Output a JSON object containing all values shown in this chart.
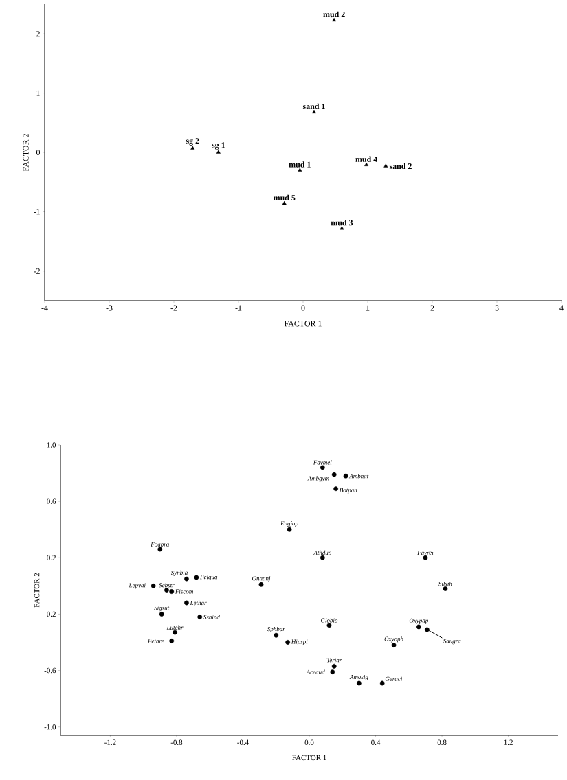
{
  "chart_data": [
    {
      "type": "scatter",
      "xlabel": "FACTOR 1",
      "ylabel": "FACTOR 2",
      "xlim": [
        -4,
        4
      ],
      "ylim": [
        -2.5,
        2.5
      ],
      "xticks": [
        -4,
        -3,
        -2,
        -1,
        0,
        1,
        2,
        3,
        4
      ],
      "yticks": [
        -2,
        -1,
        0,
        1,
        2
      ],
      "marker": "triangle",
      "series": [
        {
          "name": "mud 2",
          "color": "#000000",
          "x": [
            0.48
          ],
          "values": [
            2.23
          ]
        },
        {
          "name": "sand 1",
          "color": "#000000",
          "x": [
            0.17
          ],
          "values": [
            0.68
          ]
        },
        {
          "name": "sg 2",
          "color": "#000000",
          "x": [
            -1.71
          ],
          "values": [
            0.07
          ]
        },
        {
          "name": "sg 1",
          "color": "#000000",
          "x": [
            -1.31
          ],
          "values": [
            0.0
          ]
        },
        {
          "name": "mud 1",
          "color": "#000000",
          "x": [
            -0.05
          ],
          "values": [
            -0.3
          ]
        },
        {
          "name": "mud 4",
          "color": "#000000",
          "x": [
            0.98
          ],
          "values": [
            -0.21
          ]
        },
        {
          "name": "sand 2",
          "color": "#000000",
          "x": [
            1.28
          ],
          "values": [
            -0.23
          ]
        },
        {
          "name": "mud 5",
          "color": "#000000",
          "x": [
            -0.29
          ],
          "values": [
            -0.86
          ]
        },
        {
          "name": "mud 3",
          "color": "#000000",
          "x": [
            0.6
          ],
          "values": [
            -1.28
          ]
        }
      ]
    },
    {
      "type": "scatter",
      "xlabel": "FACTOR 1",
      "ylabel": "FACTOR 2",
      "xlim": [
        -1.5,
        1.5
      ],
      "ylim": [
        -1.06,
        1.0
      ],
      "xticks": [
        -1.2,
        -0.8,
        -0.4,
        {
          "value": 0,
          "label": "0.0"
        },
        0.4,
        0.8,
        1.2
      ],
      "yticks": [
        {
          "value": 1,
          "label": "1.0"
        },
        0.6,
        0.2,
        -0.2,
        -0.6,
        {
          "value": -1,
          "label": "-1.0"
        }
      ],
      "marker": "circle",
      "series": [
        {
          "name": "Favmel",
          "color": "#000000",
          "x": [
            0.08
          ],
          "values": [
            0.84
          ]
        },
        {
          "name": "Ambgym",
          "color": "#000000",
          "x": [
            0.15
          ],
          "values": [
            0.79
          ]
        },
        {
          "name": "Ambnat",
          "color": "#000000",
          "x": [
            0.22
          ],
          "values": [
            0.78
          ]
        },
        {
          "name": "Botpan",
          "color": "#000000",
          "x": [
            0.16
          ],
          "values": [
            0.69
          ]
        },
        {
          "name": "Engjap",
          "color": "#000000",
          "x": [
            -0.12
          ],
          "values": [
            0.4
          ]
        },
        {
          "name": "Foabra",
          "color": "#000000",
          "x": [
            -0.9
          ],
          "values": [
            0.26
          ]
        },
        {
          "name": "Athduo",
          "color": "#000000",
          "x": [
            0.08
          ],
          "values": [
            0.2
          ]
        },
        {
          "name": "Favrei",
          "color": "#000000",
          "x": [
            0.7
          ],
          "values": [
            0.2
          ]
        },
        {
          "name": "Synbia",
          "color": "#000000",
          "x": [
            -0.74
          ],
          "values": [
            0.05
          ]
        },
        {
          "name": "Pelqua",
          "color": "#000000",
          "x": [
            -0.68
          ],
          "values": [
            0.06
          ]
        },
        {
          "name": "Gnaanj",
          "color": "#000000",
          "x": [
            -0.29
          ],
          "values": [
            0.01
          ]
        },
        {
          "name": "Lepvai",
          "color": "#000000",
          "x": [
            -0.94
          ],
          "values": [
            0.0
          ]
        },
        {
          "name": "Sebstr",
          "color": "#000000",
          "x": [
            -0.86
          ],
          "values": [
            -0.03
          ]
        },
        {
          "name": "Silsih",
          "color": "#000000",
          "x": [
            0.82
          ],
          "values": [
            -0.02
          ]
        },
        {
          "name": "Fiscom",
          "color": "#000000",
          "x": [
            -0.83
          ],
          "values": [
            -0.04
          ]
        },
        {
          "name": "Lethar",
          "color": "#000000",
          "x": [
            -0.74
          ],
          "values": [
            -0.12
          ]
        },
        {
          "name": "Sigsut",
          "color": "#000000",
          "x": [
            -0.89
          ],
          "values": [
            -0.2
          ]
        },
        {
          "name": "Ssnind",
          "color": "#000000",
          "x": [
            -0.66
          ],
          "values": [
            -0.22
          ]
        },
        {
          "name": "Sphbar",
          "color": "#000000",
          "x": [
            -0.2
          ],
          "values": [
            -0.35
          ]
        },
        {
          "name": "Globio",
          "color": "#000000",
          "x": [
            0.12
          ],
          "values": [
            -0.28
          ]
        },
        {
          "name": "Oxypap",
          "color": "#000000",
          "x": [
            0.66
          ],
          "values": [
            -0.29
          ]
        },
        {
          "name": "Saugra",
          "color": "#000000",
          "x": [
            0.71
          ],
          "values": [
            -0.31
          ]
        },
        {
          "name": "Lutehr",
          "color": "#000000",
          "x": [
            -0.81
          ],
          "values": [
            -0.33
          ]
        },
        {
          "name": "Hipspi",
          "color": "#000000",
          "x": [
            -0.13
          ],
          "values": [
            -0.4
          ]
        },
        {
          "name": "Oxyoph",
          "color": "#000000",
          "x": [
            0.51
          ],
          "values": [
            -0.42
          ]
        },
        {
          "name": "Pethre",
          "color": "#000000",
          "x": [
            -0.83
          ],
          "values": [
            -0.39
          ]
        },
        {
          "name": "Terjar",
          "color": "#000000",
          "x": [
            0.15
          ],
          "values": [
            -0.57
          ]
        },
        {
          "name": "Aceaud",
          "color": "#000000",
          "x": [
            0.14
          ],
          "values": [
            -0.61
          ]
        },
        {
          "name": "Amosig",
          "color": "#000000",
          "x": [
            0.3
          ],
          "values": [
            -0.69
          ]
        },
        {
          "name": "Geraci",
          "color": "#000000",
          "x": [
            0.44
          ],
          "values": [
            -0.69
          ]
        }
      ]
    }
  ]
}
